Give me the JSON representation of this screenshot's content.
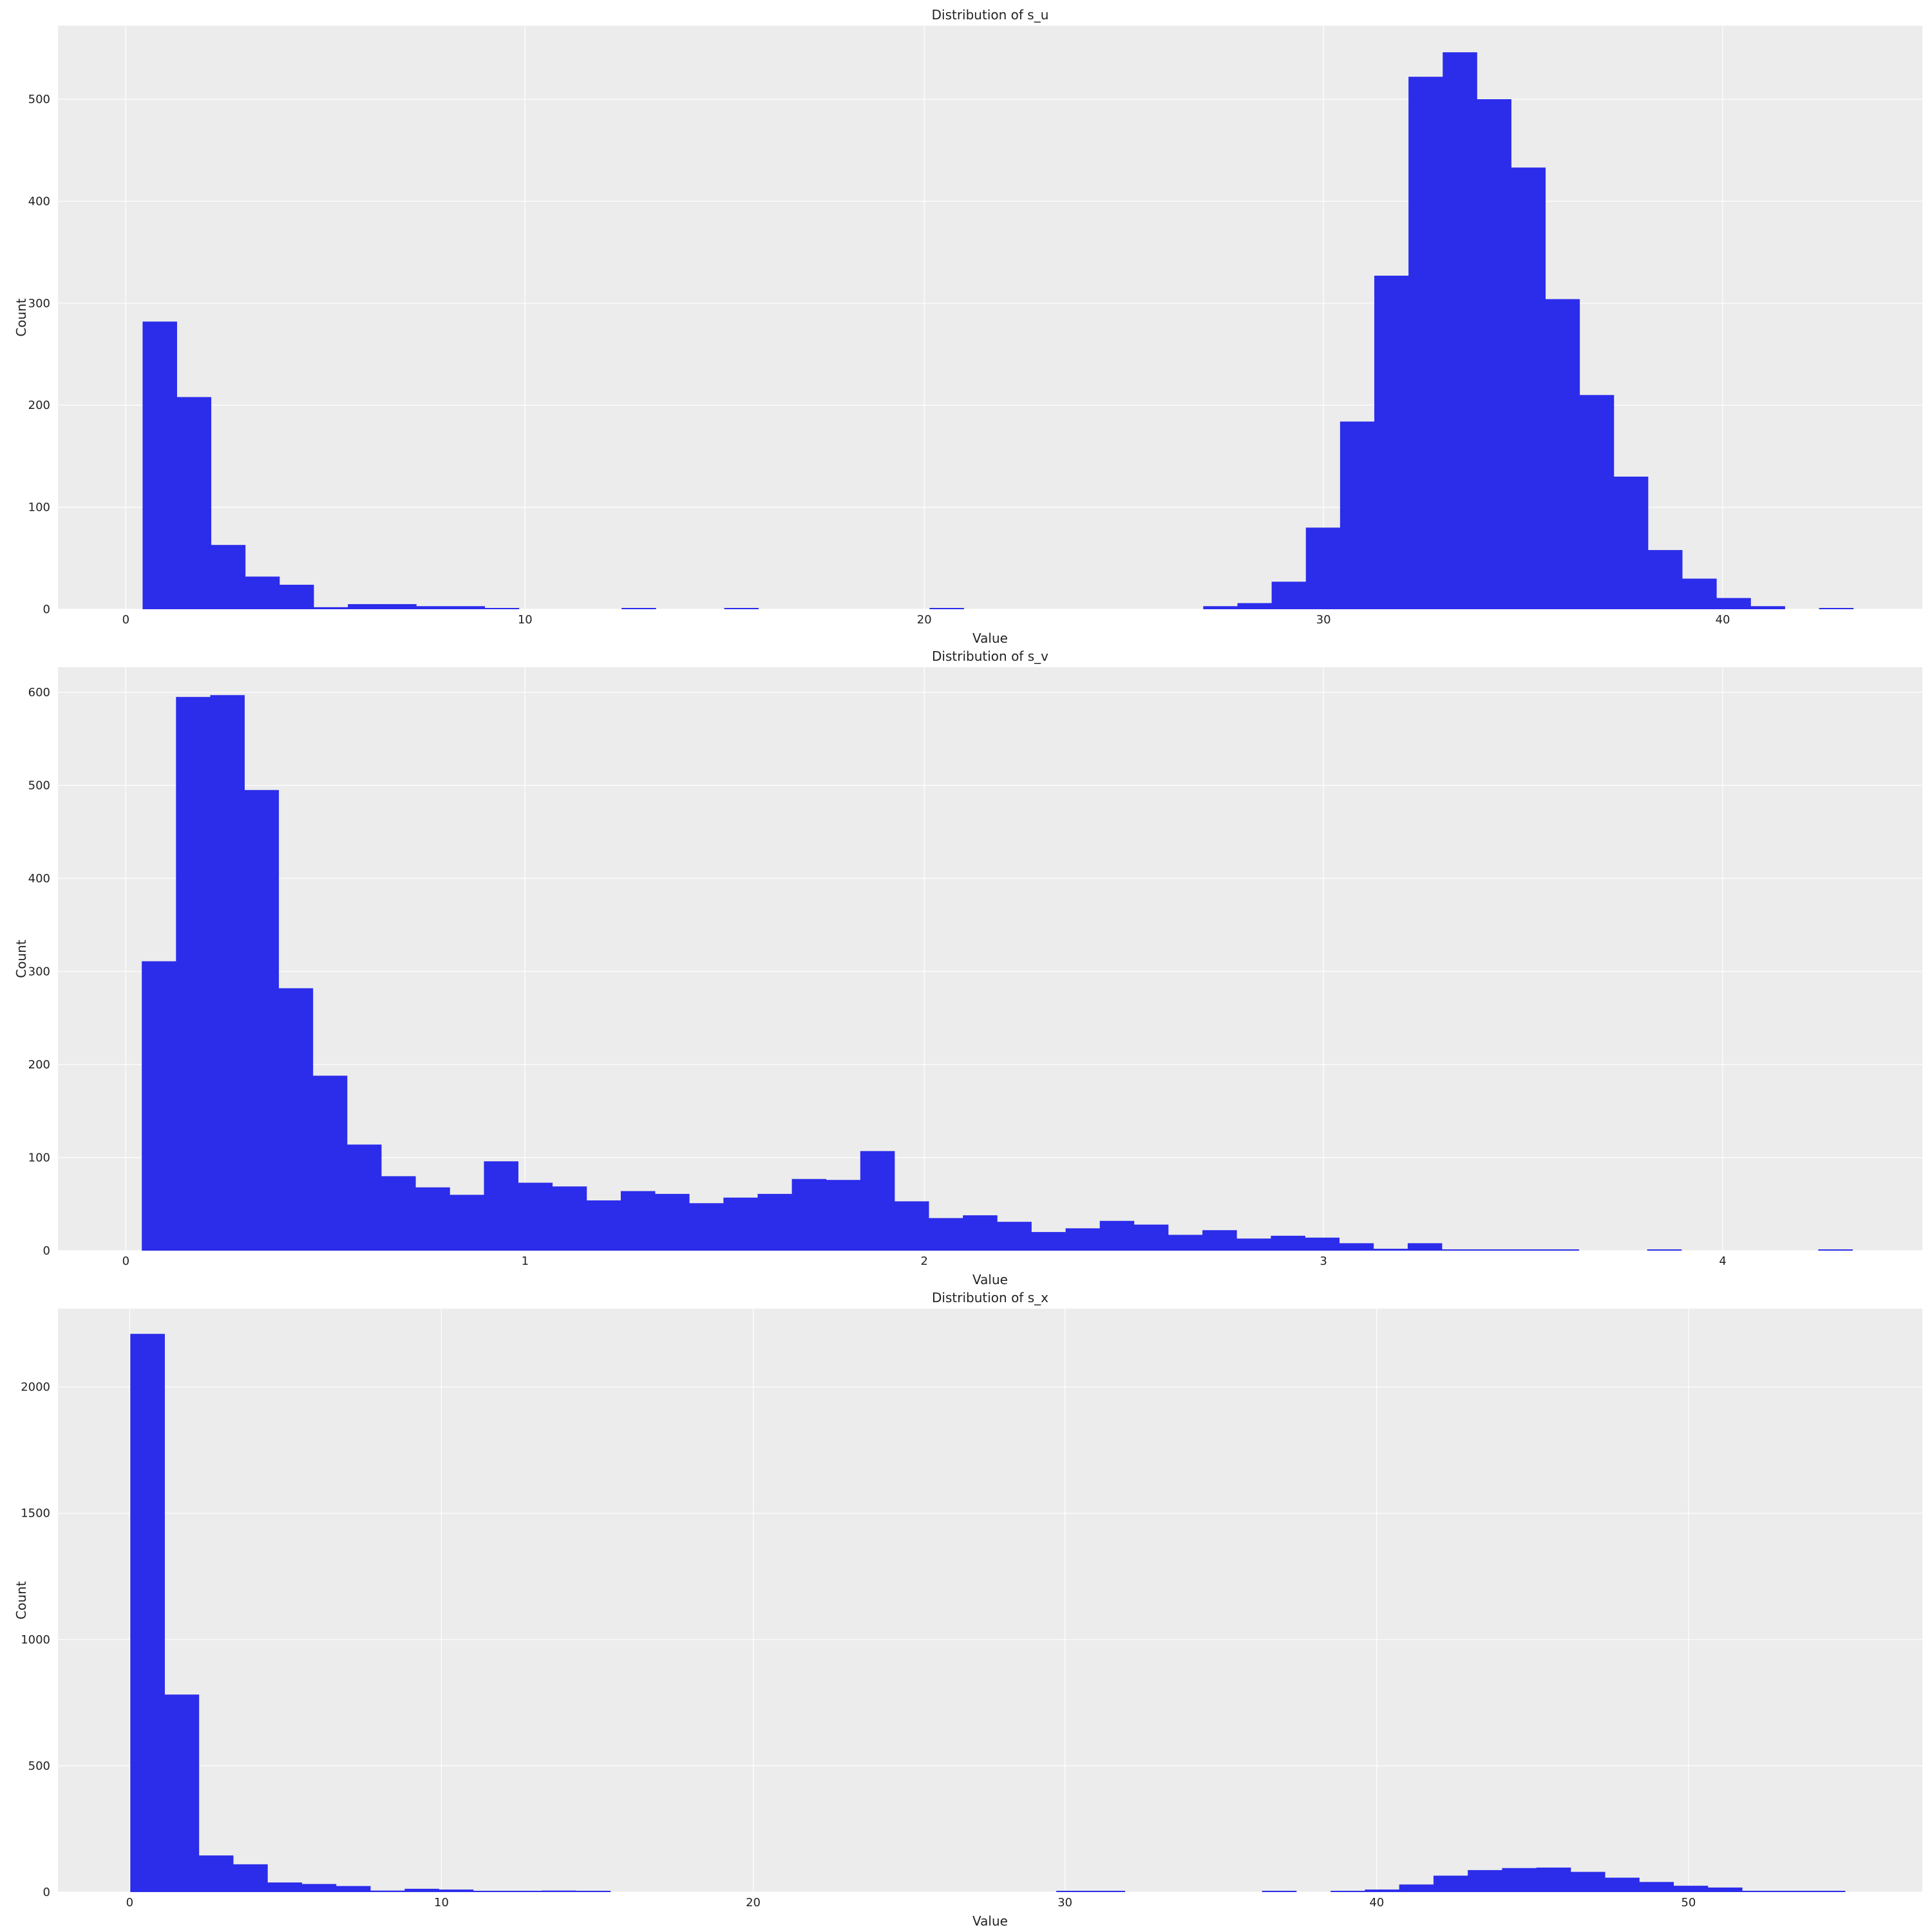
{
  "chart_data": [
    {
      "type": "histogram",
      "title": "Distribution of s_u",
      "xlabel": "Value",
      "ylabel": "Count",
      "xlim": [
        -1.7,
        45.0
      ],
      "ylim": [
        0,
        572
      ],
      "xticks": [
        0,
        10,
        20,
        30,
        40
      ],
      "yticks": [
        0,
        100,
        200,
        300,
        400,
        500
      ],
      "bar_color": "#2c2ceb",
      "grid": true,
      "bins": {
        "start": 0.42,
        "width": 0.857,
        "count": 50
      },
      "values": [
        282,
        208,
        63,
        32,
        24,
        2,
        5,
        5,
        3,
        3,
        1,
        0,
        0,
        0,
        1,
        0,
        0,
        1,
        0,
        0,
        0,
        0,
        0,
        1,
        0,
        0,
        0,
        0,
        0,
        0,
        0,
        3,
        6,
        27,
        80,
        184,
        327,
        522,
        546,
        500,
        433,
        304,
        210,
        130,
        58,
        30,
        11,
        3,
        0,
        1
      ]
    },
    {
      "type": "histogram",
      "title": "Distribution of s_v",
      "xlabel": "Value",
      "ylabel": "Count",
      "xlim": [
        -0.17,
        4.5
      ],
      "ylim": [
        0,
        627
      ],
      "xticks": [
        0,
        1,
        2,
        3,
        4
      ],
      "yticks": [
        0,
        100,
        200,
        300,
        400,
        500,
        600
      ],
      "bar_color": "#2c2ceb",
      "grid": true,
      "bins": {
        "start": 0.04,
        "width": 0.0857,
        "count": 50
      },
      "values": [
        311,
        595,
        597,
        495,
        282,
        188,
        114,
        80,
        68,
        60,
        96,
        73,
        69,
        54,
        64,
        61,
        51,
        57,
        61,
        77,
        76,
        107,
        53,
        35,
        38,
        31,
        20,
        24,
        32,
        28,
        17,
        22,
        13,
        16,
        14,
        8,
        2,
        8,
        1,
        1,
        1,
        1,
        0,
        0,
        1,
        0,
        0,
        0,
        0,
        1
      ]
    },
    {
      "type": "histogram",
      "title": "Distribution of s_x",
      "xlabel": "Value",
      "ylabel": "Count",
      "xlim": [
        -2.3,
        57.5
      ],
      "ylim": [
        0,
        2310
      ],
      "xticks": [
        0,
        10,
        20,
        30,
        40,
        50
      ],
      "yticks": [
        0,
        500,
        1000,
        1500,
        2000
      ],
      "bar_color": "#2c2ceb",
      "grid": true,
      "bins": {
        "start": 0.02,
        "width": 1.1,
        "count": 50
      },
      "values": [
        2210,
        782,
        145,
        110,
        38,
        32,
        24,
        6,
        13,
        10,
        5,
        3,
        6,
        3,
        0,
        0,
        0,
        0,
        0,
        0,
        0,
        0,
        0,
        0,
        0,
        0,
        0,
        1,
        1,
        0,
        0,
        0,
        0,
        1,
        0,
        3,
        10,
        30,
        65,
        87,
        95,
        97,
        80,
        57,
        40,
        25,
        18,
        5,
        2,
        1
      ]
    }
  ]
}
